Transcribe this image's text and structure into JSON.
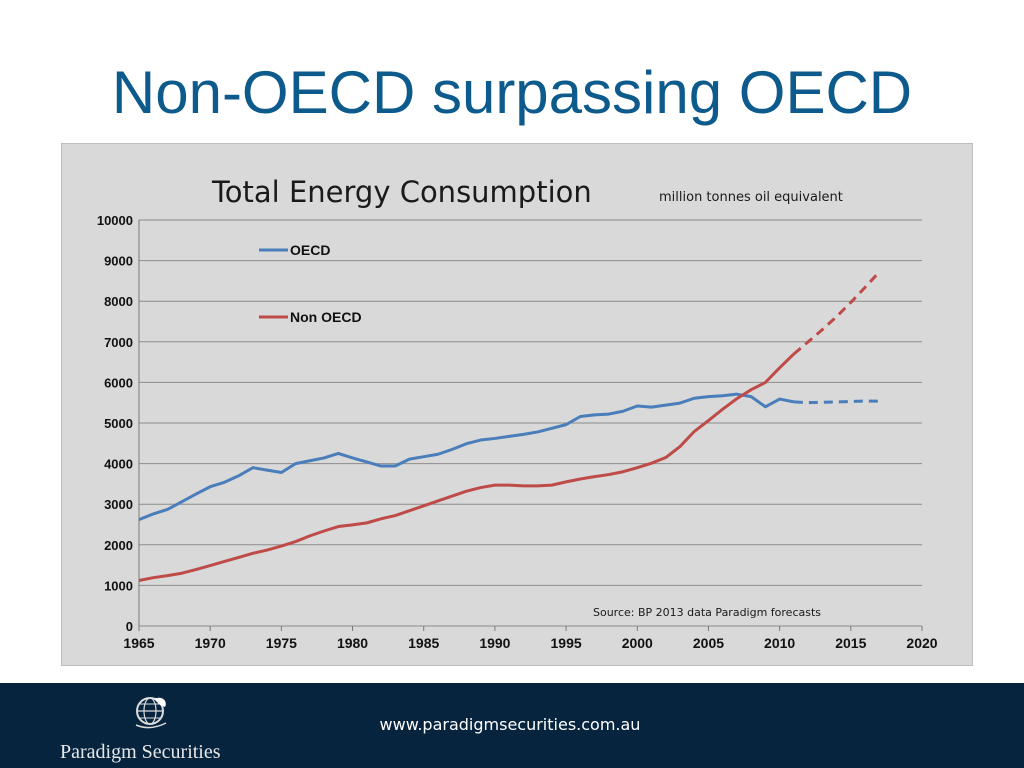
{
  "slide": {
    "title": "Non-OECD surpassing OECD"
  },
  "footer": {
    "url": "www.paradigmsecurities.com.au",
    "logo_text": "Paradigm Securities",
    "logo_icon": "globe-icon"
  },
  "colors": {
    "title": "#0d5a8c",
    "oecd": "#4a7ebb",
    "non_oecd": "#be4b48",
    "chart_background": "#d9d9d9",
    "footer": "#06243e"
  },
  "chart_data": {
    "type": "line",
    "title": "Total Energy Consumption",
    "subtitle": "million tonnes oil equivalent",
    "source": "Source: BP 2013 data  Paradigm forecasts",
    "xlim": [
      1965,
      2020
    ],
    "ylim": [
      0,
      10000
    ],
    "x_ticks": [
      1965,
      1970,
      1975,
      1980,
      1985,
      1990,
      1995,
      2000,
      2005,
      2010,
      2015,
      2020
    ],
    "y_ticks": [
      0,
      1000,
      2000,
      3000,
      4000,
      5000,
      6000,
      7000,
      8000,
      9000,
      10000
    ],
    "grid": "horizontal",
    "legend_position": "top-left",
    "series": [
      {
        "name": "OECD",
        "color": "#4a7ebb",
        "x": [
          1965,
          1966,
          1967,
          1968,
          1969,
          1970,
          1971,
          1972,
          1973,
          1974,
          1975,
          1976,
          1977,
          1978,
          1979,
          1980,
          1981,
          1982,
          1983,
          1984,
          1985,
          1986,
          1987,
          1988,
          1989,
          1990,
          1991,
          1992,
          1993,
          1994,
          1995,
          1996,
          1997,
          1998,
          1999,
          2000,
          2001,
          2002,
          2003,
          2004,
          2005,
          2006,
          2007,
          2008,
          2009,
          2010,
          2011
        ],
        "values": [
          2620,
          2760,
          2870,
          3060,
          3250,
          3430,
          3540,
          3700,
          3900,
          3840,
          3780,
          4000,
          4070,
          4140,
          4250,
          4140,
          4040,
          3940,
          3940,
          4110,
          4170,
          4230,
          4350,
          4490,
          4580,
          4620,
          4670,
          4720,
          4780,
          4870,
          4960,
          5160,
          5200,
          5220,
          5290,
          5420,
          5390,
          5440,
          5490,
          5610,
          5650,
          5670,
          5710,
          5650,
          5400,
          5590,
          5520
        ],
        "forecast": {
          "x": [
            2011,
            2012,
            2013,
            2014,
            2015,
            2016,
            2017
          ],
          "values": [
            5520,
            5500,
            5510,
            5520,
            5530,
            5540,
            5540
          ]
        }
      },
      {
        "name": "Non OECD",
        "color": "#be4b48",
        "x": [
          1965,
          1966,
          1967,
          1968,
          1969,
          1970,
          1971,
          1972,
          1973,
          1974,
          1975,
          1976,
          1977,
          1978,
          1979,
          1980,
          1981,
          1982,
          1983,
          1984,
          1985,
          1986,
          1987,
          1988,
          1989,
          1990,
          1991,
          1992,
          1993,
          1994,
          1995,
          1996,
          1997,
          1998,
          1999,
          2000,
          2001,
          2002,
          2003,
          2004,
          2005,
          2006,
          2007,
          2008,
          2009,
          2010,
          2011
        ],
        "values": [
          1120,
          1190,
          1240,
          1300,
          1390,
          1490,
          1590,
          1690,
          1790,
          1870,
          1970,
          2080,
          2220,
          2340,
          2450,
          2490,
          2540,
          2640,
          2720,
          2840,
          2960,
          3080,
          3200,
          3320,
          3410,
          3470,
          3470,
          3450,
          3450,
          3470,
          3550,
          3620,
          3680,
          3730,
          3800,
          3900,
          4010,
          4150,
          4420,
          4790,
          5060,
          5340,
          5600,
          5820,
          6000,
          6360,
          6700
        ],
        "forecast": {
          "x": [
            2011,
            2012,
            2013,
            2014,
            2015,
            2016,
            2017
          ],
          "values": [
            6700,
            7000,
            7300,
            7620,
            7970,
            8340,
            8720
          ]
        }
      }
    ]
  }
}
